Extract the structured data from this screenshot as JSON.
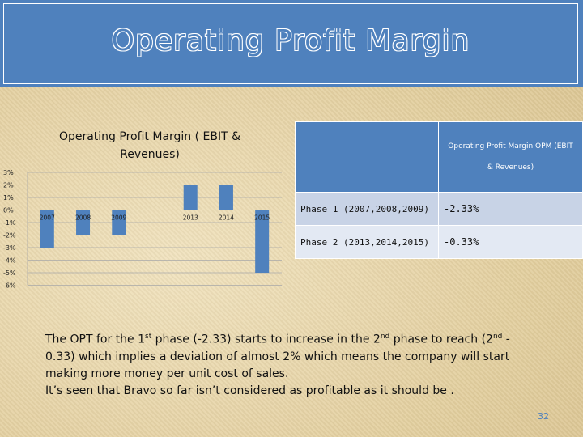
{
  "slide": {
    "title": "Operating Profit Margin",
    "page_number": "32"
  },
  "chart_data": {
    "type": "bar",
    "title_line1": "Operating Profit Margin ( EBIT &",
    "title_line2": "Revenues)",
    "categories": [
      "2007",
      "2008",
      "2009",
      "2013",
      "2014",
      "2015"
    ],
    "values": [
      -3.0,
      -2.0,
      -2.0,
      2.0,
      2.0,
      -5.0
    ],
    "y_ticks": [
      "3%",
      "2%",
      "1%",
      "0%",
      "-1%",
      "-2%",
      "-3%",
      "-4%",
      "-5%",
      "-6%"
    ],
    "ylim": [
      -6,
      3
    ],
    "grid": true,
    "bar_color": "#4f81bd"
  },
  "table": {
    "header_line1": "Operating Profit Margin OPM (EBIT",
    "header_line2": "& Revenues)",
    "rows": [
      {
        "label": "Phase 1 (2007,2008,2009)",
        "value": "-2.33%"
      },
      {
        "label": "Phase 2 (2013,2014,2015)",
        "value": "-0.33%"
      }
    ]
  },
  "body": {
    "p1_a": "The OPT for the 1",
    "p1_sup1": "st",
    "p1_b": " phase (-2.33) starts to increase in the 2",
    "p1_sup2": "nd",
    "p1_c": " phase to reach (2",
    "p1_sup3": "nd",
    "p1_d": " - 0.33) which implies a deviation of almost 2% which means the company will start making more money per unit cost of sales.",
    "p2": "It’s seen that Bravo so far isn’t considered as profitable as it should be ."
  }
}
